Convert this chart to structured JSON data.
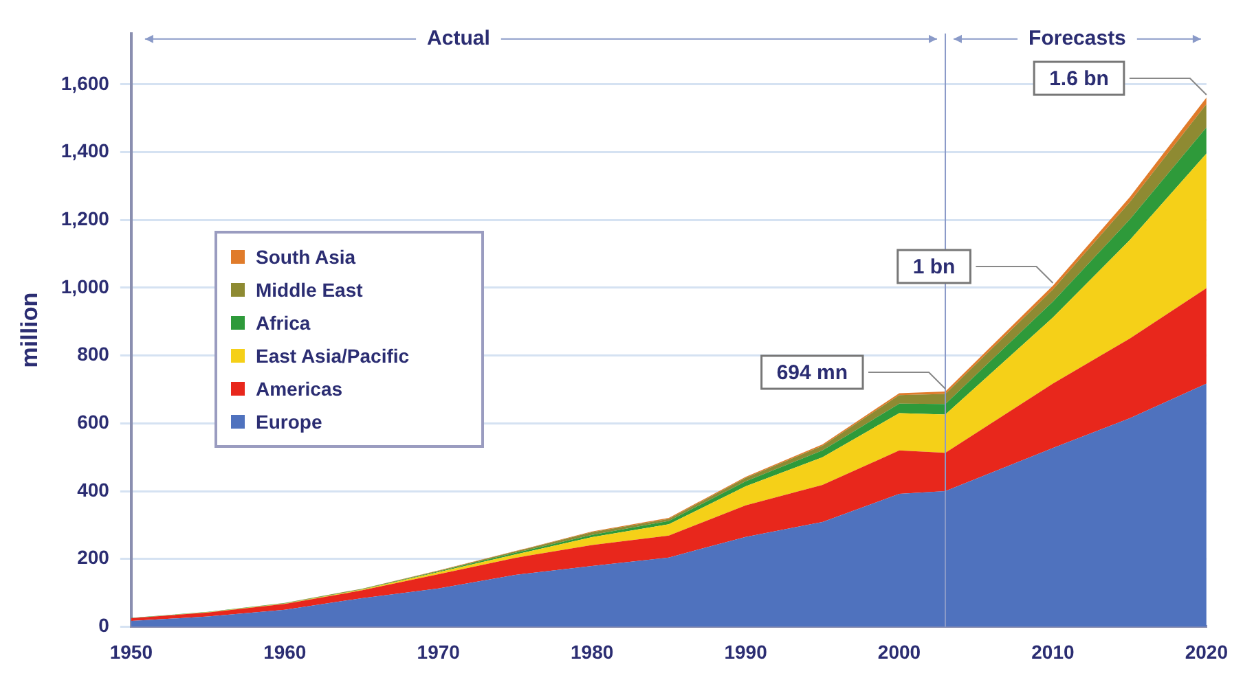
{
  "chart_data": {
    "type": "area",
    "stacked": true,
    "ylabel": "million",
    "x": [
      1950,
      1955,
      1960,
      1965,
      1970,
      1975,
      1980,
      1985,
      1990,
      1995,
      2000,
      2003,
      2010,
      2015,
      2020
    ],
    "xlim": [
      1950,
      2020
    ],
    "xticks": [
      1950,
      1960,
      1970,
      1980,
      1990,
      2000,
      2010,
      2020
    ],
    "ylim": [
      0,
      1750
    ],
    "yticks": [
      {
        "value": 0,
        "label": "0"
      },
      {
        "value": 200,
        "label": "200"
      },
      {
        "value": 400,
        "label": "400"
      },
      {
        "value": 600,
        "label": "600"
      },
      {
        "value": 800,
        "label": "800"
      },
      {
        "value": 1000,
        "label": "1,000"
      },
      {
        "value": 1200,
        "label": "1,200"
      },
      {
        "value": 1400,
        "label": "1,400"
      },
      {
        "value": 1600,
        "label": "1,600"
      }
    ],
    "grid": "y",
    "legend": "left",
    "marker": "none",
    "series": [
      {
        "name": "Europe",
        "color": "#4f72be",
        "values": [
          17,
          30,
          50,
          84,
          113,
          153,
          179,
          204,
          265,
          309,
          392,
          400,
          527,
          615,
          717
        ]
      },
      {
        "name": "Americas",
        "color": "#e8271c",
        "values": [
          8,
          12,
          17,
          23,
          42,
          50,
          62,
          65,
          93,
          109,
          128,
          113,
          190,
          235,
          282
        ]
      },
      {
        "name": "East Asia/Pacific",
        "color": "#f5d018",
        "values": [
          0,
          1,
          1,
          2,
          6,
          10,
          23,
          33,
          56,
          82,
          110,
          113,
          195,
          290,
          397
        ]
      },
      {
        "name": "Africa",
        "color": "#2e9a3a",
        "values": [
          1,
          1,
          1,
          1,
          2,
          5,
          7,
          10,
          15,
          20,
          28,
          31,
          47,
          61,
          77
        ]
      },
      {
        "name": "Middle East",
        "color": "#8e8a32",
        "values": [
          0,
          0,
          1,
          2,
          2,
          4,
          8,
          6,
          10,
          14,
          25,
          30,
          36,
          51,
          69
        ]
      },
      {
        "name": "South Asia",
        "color": "#e07b2a",
        "values": [
          0,
          0,
          0,
          0,
          1,
          1,
          2,
          3,
          3,
          4,
          6,
          7,
          11,
          15,
          19
        ]
      }
    ],
    "ref_lines": [
      {
        "axis": "x",
        "value": 2003,
        "color": "#8a9ac8"
      }
    ],
    "annotations": [
      "Actual",
      "Forecasts",
      {
        "text": "694 mn",
        "x": 2003,
        "y": 694
      },
      {
        "text": "1 bn",
        "x": 2010,
        "y": 1006
      },
      {
        "text": "1.6 bn",
        "x": 2020,
        "y": 1561
      }
    ]
  }
}
